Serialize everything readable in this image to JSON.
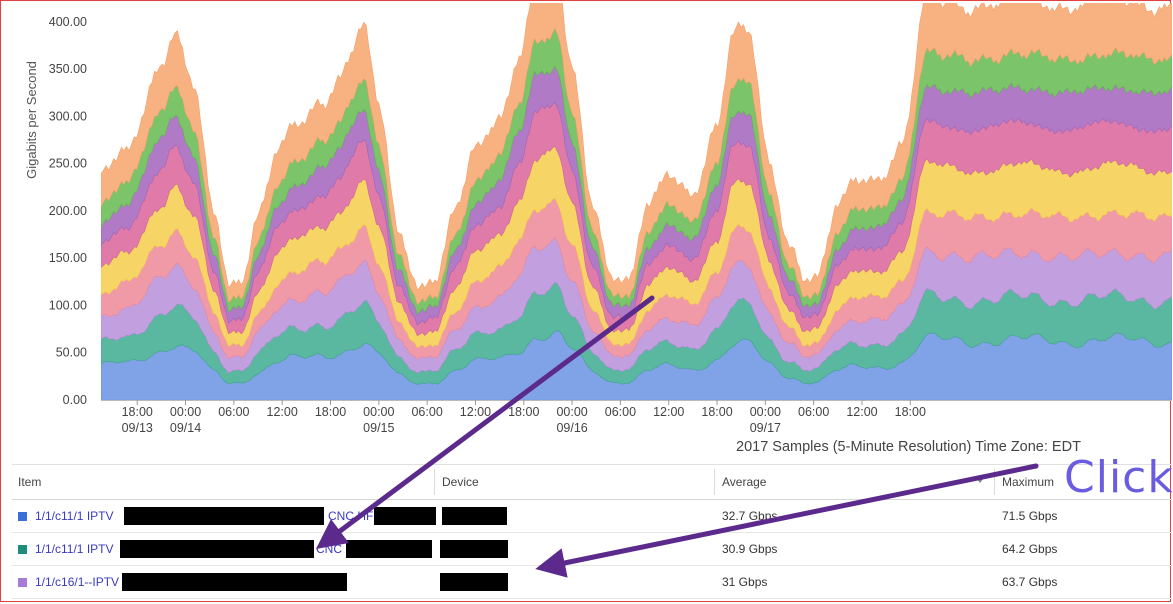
{
  "chart_data": {
    "type": "area",
    "stacked": true,
    "ylabel": "Gigabits per Second",
    "ylim": [
      0,
      420
    ],
    "yticks": [
      "0.00",
      "50.00",
      "100.00",
      "150.00",
      "200.00",
      "250.00",
      "300.00",
      "350.00",
      "400.00"
    ],
    "x_time_range_hours": [
      13.5,
      146.5
    ],
    "xticks": [
      {
        "h": 18,
        "label": "18:00",
        "date": "09/13"
      },
      {
        "h": 24,
        "label": "00:00",
        "date": "09/14"
      },
      {
        "h": 30,
        "label": "06:00",
        "date": ""
      },
      {
        "h": 36,
        "label": "12:00",
        "date": ""
      },
      {
        "h": 42,
        "label": "18:00",
        "date": ""
      },
      {
        "h": 48,
        "label": "00:00",
        "date": "09/15"
      },
      {
        "h": 54,
        "label": "06:00",
        "date": ""
      },
      {
        "h": 60,
        "label": "12:00",
        "date": ""
      },
      {
        "h": 66,
        "label": "18:00",
        "date": ""
      },
      {
        "h": 72,
        "label": "00:00",
        "date": "09/16"
      },
      {
        "h": 78,
        "label": "06:00",
        "date": ""
      },
      {
        "h": 84,
        "label": "12:00",
        "date": ""
      },
      {
        "h": 90,
        "label": "18:00",
        "date": ""
      },
      {
        "h": 96,
        "label": "00:00",
        "date": "09/17"
      },
      {
        "h": 102,
        "label": "06:00",
        "date": ""
      },
      {
        "h": 108,
        "label": "12:00",
        "date": ""
      },
      {
        "h": 114,
        "label": "18:00",
        "date": ""
      }
    ],
    "footer": "2017 Samples (5-Minute Resolution) Time Zone: EDT",
    "total_keypoints": [
      {
        "h": 13.5,
        "v": 237
      },
      {
        "h": 16.5,
        "v": 265
      },
      {
        "h": 21.0,
        "v": 355
      },
      {
        "h": 22.5,
        "v": 385
      },
      {
        "h": 25.0,
        "v": 330
      },
      {
        "h": 27.5,
        "v": 200
      },
      {
        "h": 29.5,
        "v": 122
      },
      {
        "h": 31.0,
        "v": 128
      },
      {
        "h": 33.0,
        "v": 195
      },
      {
        "h": 35.5,
        "v": 263
      },
      {
        "h": 38.0,
        "v": 292
      },
      {
        "h": 41.0,
        "v": 318
      },
      {
        "h": 43.0,
        "v": 342
      },
      {
        "h": 46.0,
        "v": 393
      },
      {
        "h": 48.0,
        "v": 310
      },
      {
        "h": 50.5,
        "v": 175
      },
      {
        "h": 53.0,
        "v": 120
      },
      {
        "h": 55.0,
        "v": 128
      },
      {
        "h": 57.5,
        "v": 200
      },
      {
        "h": 60.0,
        "v": 263
      },
      {
        "h": 63.0,
        "v": 300
      },
      {
        "h": 65.5,
        "v": 370
      },
      {
        "h": 67.5,
        "v": 440
      },
      {
        "h": 70.0,
        "v": 445
      },
      {
        "h": 72.0,
        "v": 350
      },
      {
        "h": 74.5,
        "v": 210
      },
      {
        "h": 77.0,
        "v": 130
      },
      {
        "h": 79.0,
        "v": 127
      },
      {
        "h": 81.5,
        "v": 205
      },
      {
        "h": 84.0,
        "v": 238
      },
      {
        "h": 87.0,
        "v": 220
      },
      {
        "h": 90.0,
        "v": 290
      },
      {
        "h": 92.0,
        "v": 385
      },
      {
        "h": 94.0,
        "v": 385
      },
      {
        "h": 96.5,
        "v": 250
      },
      {
        "h": 99.0,
        "v": 165
      },
      {
        "h": 101.0,
        "v": 128
      },
      {
        "h": 102.5,
        "v": 130
      },
      {
        "h": 105.0,
        "v": 205
      },
      {
        "h": 107.5,
        "v": 235
      },
      {
        "h": 110.0,
        "v": 235
      },
      {
        "h": 113.0,
        "v": 270
      },
      {
        "h": 116.0,
        "v": 420
      }
    ],
    "series_fractions": [
      0.15,
      0.105,
      0.11,
      0.1,
      0.12,
      0.105,
      0.09,
      0.085,
      0.135
    ],
    "colors": [
      "#7fa3e6",
      "#5bb8a0",
      "#c2a0e0",
      "#f09aa8",
      "#f7d466",
      "#e07aa8",
      "#b07ac6",
      "#7cc46a",
      "#f8b282"
    ],
    "dark_colors": [
      "#6a8fd8",
      "#3fa48a",
      "#b18ad4",
      "#e8889a",
      "#f0c84a",
      "#d0659a",
      "#9f66b8",
      "#63b352",
      "#f59f6a"
    ]
  },
  "table": {
    "headers": {
      "item": "Item",
      "device": "Device",
      "average": "Average",
      "maximum": "Maximum"
    },
    "rows": [
      {
        "color": "#3b6fd8",
        "item": "1/1/c11/1 IPTV",
        "item_tail": "CNC HF",
        "average": "32.7 Gbps",
        "maximum": "71.5 Gbps"
      },
      {
        "color": "#1e8c7a",
        "item": "1/1/c11/1 IPTV",
        "item_tail": "CNC",
        "average": "30.9 Gbps",
        "maximum": "64.2 Gbps"
      },
      {
        "color": "#a77cd6",
        "item": "1/1/c16/1--IPTV",
        "item_tail": "",
        "average": "31 Gbps",
        "maximum": "63.7 Gbps"
      }
    ]
  },
  "annotation": {
    "text": "Click",
    "color": "#6a5ce0",
    "arrow_color": "#5b2a8c"
  }
}
